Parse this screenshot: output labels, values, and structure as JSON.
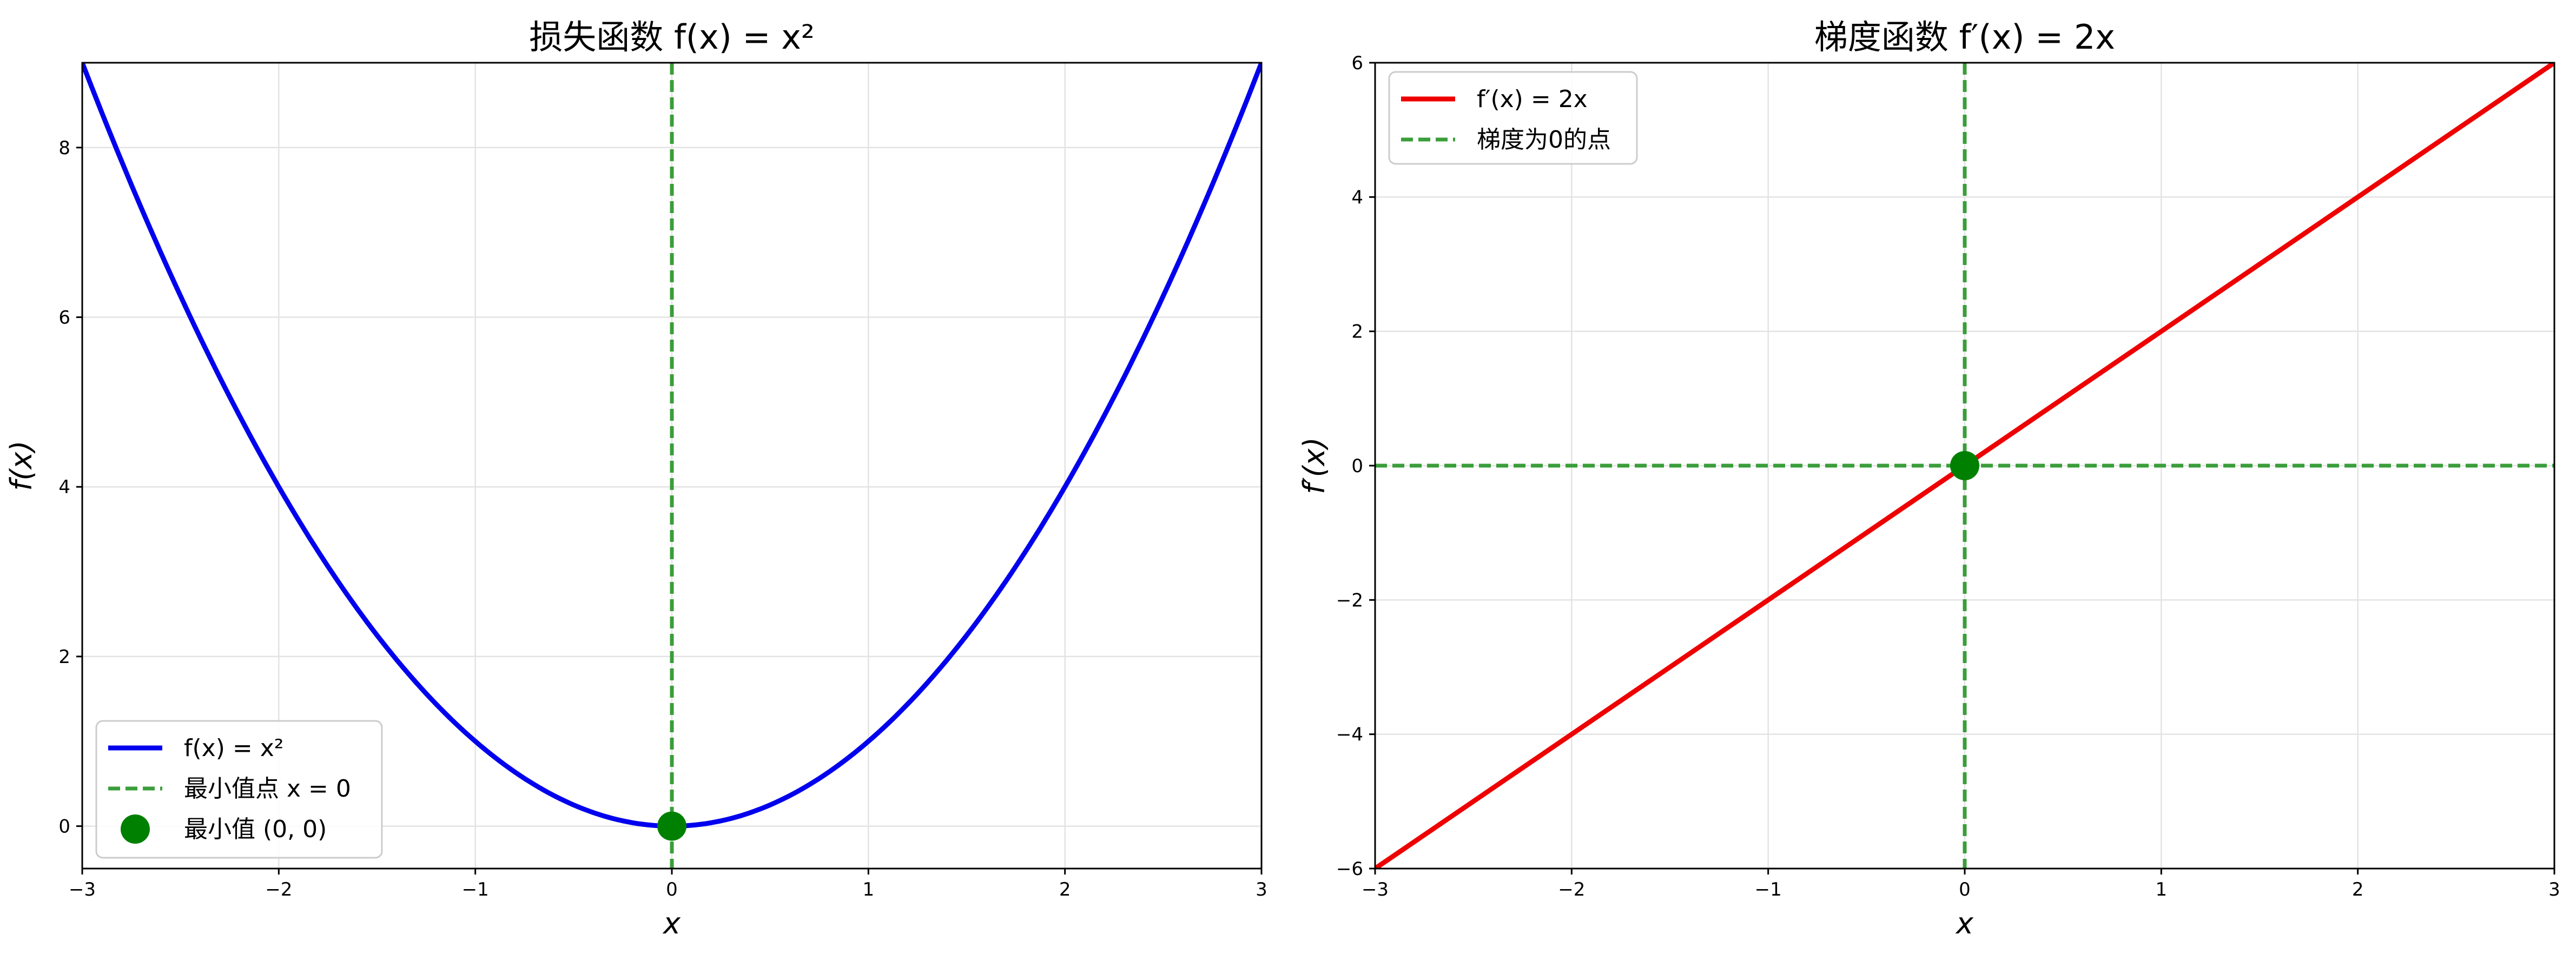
{
  "chart_data": [
    {
      "type": "line",
      "title": "损失函数  f(x) = x²",
      "xlabel": "x",
      "ylabel": "f(x)",
      "xlim": [
        -3,
        3
      ],
      "ylim": [
        -0.5,
        9
      ],
      "xticks": [
        -3,
        -2,
        -1,
        0,
        1,
        2,
        3
      ],
      "yticks": [
        0,
        2,
        4,
        6,
        8
      ],
      "xtick_labels": [
        "−3",
        "−2",
        "−1",
        "0",
        "1",
        "2",
        "3"
      ],
      "ytick_labels": [
        "0",
        "2",
        "4",
        "6",
        "8"
      ],
      "grid": true,
      "legend_position": "lower-left",
      "series": [
        {
          "name": "f(x) = x²",
          "kind": "line",
          "style": "solid",
          "color": "#0000ee",
          "x": [
            -3,
            -2.5,
            -2,
            -1.5,
            -1,
            -0.5,
            0,
            0.5,
            1,
            1.5,
            2,
            2.5,
            3
          ],
          "y": [
            9,
            6.25,
            4,
            2.25,
            1,
            0.25,
            0,
            0.25,
            1,
            2.25,
            4,
            6.25,
            9
          ]
        },
        {
          "name": "最小值点  x = 0",
          "kind": "vline",
          "style": "dashed",
          "color": "#3a9e3a",
          "x": [
            0
          ]
        },
        {
          "name": "最小值  (0, 0)",
          "kind": "point",
          "color": "#008000",
          "x": [
            0
          ],
          "y": [
            0
          ]
        }
      ]
    },
    {
      "type": "line",
      "title": "梯度函数  f′(x) = 2x",
      "xlabel": "x",
      "ylabel": "f′(x)",
      "xlim": [
        -3,
        3
      ],
      "ylim": [
        -6,
        6
      ],
      "xticks": [
        -3,
        -2,
        -1,
        0,
        1,
        2,
        3
      ],
      "yticks": [
        -6,
        -4,
        -2,
        0,
        2,
        4,
        6
      ],
      "xtick_labels": [
        "−3",
        "−2",
        "−1",
        "0",
        "1",
        "2",
        "3"
      ],
      "ytick_labels": [
        "−6",
        "−4",
        "−2",
        "0",
        "2",
        "4",
        "6"
      ],
      "grid": true,
      "legend_position": "upper-left",
      "series": [
        {
          "name": "f′(x) = 2x",
          "kind": "line",
          "style": "solid",
          "color": "#ee0000",
          "x": [
            -3,
            3
          ],
          "y": [
            -6,
            6
          ]
        },
        {
          "name": "梯度为0的点",
          "kind": "vline",
          "style": "dashed",
          "color": "#3a9e3a",
          "x": [
            0
          ]
        },
        {
          "name": "",
          "kind": "hline",
          "style": "dashed",
          "color": "#3a9e3a",
          "y": [
            0
          ]
        },
        {
          "name": "",
          "kind": "point",
          "color": "#008000",
          "x": [
            0
          ],
          "y": [
            0
          ]
        }
      ]
    }
  ]
}
